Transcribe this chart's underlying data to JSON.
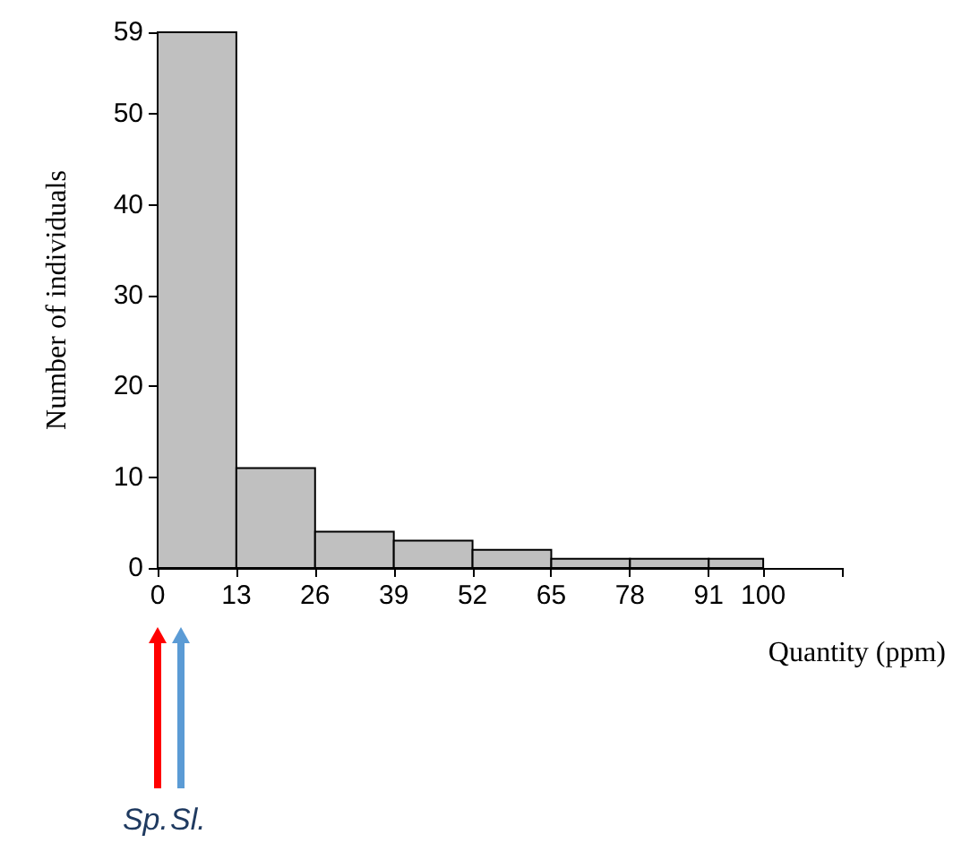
{
  "chart_data": {
    "type": "histogram",
    "xlabel": "Quantity (ppm)",
    "ylabel": "Number of individuals",
    "bins": [
      0,
      13,
      26,
      39,
      52,
      65,
      78,
      91,
      100
    ],
    "values": [
      59,
      11,
      4,
      3,
      2,
      1,
      1,
      1
    ],
    "color": "#c0c0c0",
    "xlim": [
      0,
      113
    ],
    "xticks": [
      0,
      13,
      26,
      39,
      52,
      65,
      78,
      91,
      100,
      {
        "value": 113,
        "label": null
      }
    ],
    "ylim": [
      0,
      59
    ],
    "yticks": [
      0,
      10,
      20,
      30,
      40,
      50,
      59
    ],
    "grid": false,
    "annotations": [
      "Sp.",
      "Sl."
    ]
  }
}
